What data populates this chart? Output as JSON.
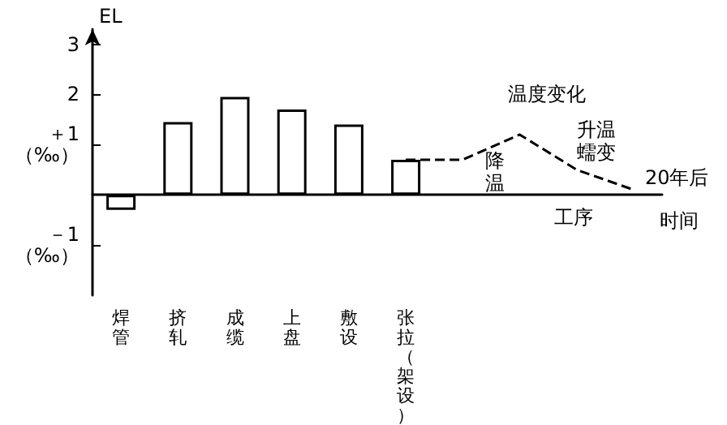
{
  "chart_data": {
    "type": "bar",
    "ylabel": "EL",
    "xlabel": "时间",
    "categories": [
      "焊管",
      "挤轧",
      "成缆",
      "上盘",
      "敷设",
      "张拉（架设）",
      null,
      null,
      null,
      null
    ],
    "series": [
      {
        "color": "#ffffff",
        "values": [
          -0.3,
          1.45,
          1.95,
          1.7,
          1.4,
          0.7,
          null,
          null,
          null,
          null
        ]
      },
      {
        "type": "line",
        "color": "#000000",
        "line_style": "dashed",
        "marker": "none",
        "values": [
          null,
          null,
          null,
          null,
          null,
          0.7,
          0.7,
          1.2,
          0.5,
          0.1
        ]
      }
    ],
    "ylim": [
      -2,
      3.3
    ],
    "yticks": [
      {
        "value": -1,
        "label": "－1\n（‰）"
      },
      {
        "value": 1,
        "label": "＋1\n（‰）"
      },
      2,
      3
    ],
    "annotations": [
      "温度变化",
      "升温",
      "蠕变",
      "降温",
      "20年后",
      "工序"
    ],
    "grid": false
  }
}
